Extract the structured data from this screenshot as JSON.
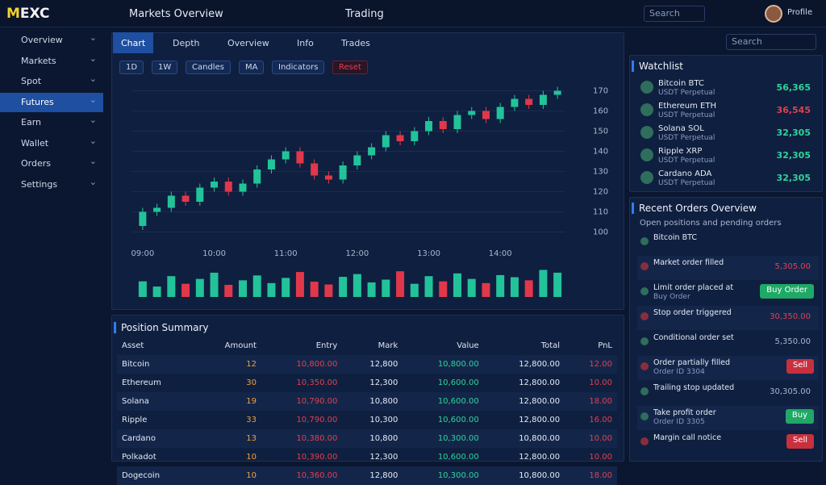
{
  "header": {
    "logo": "MEXC",
    "nav": [
      "Markets Overview",
      "Trading"
    ],
    "search": "Search",
    "user": "Profile"
  },
  "sidebar": {
    "items": [
      "Overview",
      "Markets",
      "Spot",
      "Futures",
      "Earn",
      "Wallet",
      "Orders",
      "Settings"
    ],
    "active": 3
  },
  "tabs": {
    "items": [
      "Chart",
      "Depth",
      "Overview",
      "Info",
      "Trades"
    ],
    "active": 0,
    "search": "Search"
  },
  "filters": [
    "1D",
    "1W",
    "Candles",
    "MA",
    "Indicators",
    "Reset"
  ],
  "chart_data": [
    {
      "type": "candlestick",
      "categories": [
        "09:00",
        null,
        null,
        null,
        null,
        "10:00",
        null,
        null,
        null,
        null,
        "11:00",
        null,
        null,
        null,
        null,
        "12:00",
        null,
        null,
        null,
        null,
        "13:00",
        null,
        null,
        null,
        null,
        "14:00",
        null,
        null,
        null,
        null
      ],
      "open": [
        103,
        110,
        112,
        118,
        115,
        122,
        125,
        120,
        124,
        131,
        136,
        140,
        134,
        128,
        126,
        133,
        138,
        142,
        148,
        145,
        150,
        155,
        151,
        158,
        160,
        156,
        162,
        166,
        163,
        168
      ],
      "close": [
        110,
        112,
        118,
        115,
        122,
        125,
        120,
        124,
        131,
        136,
        140,
        134,
        128,
        126,
        133,
        138,
        142,
        148,
        145,
        150,
        155,
        151,
        158,
        160,
        156,
        162,
        166,
        163,
        168,
        170
      ],
      "high": [
        112,
        114,
        120,
        120,
        124,
        127,
        127,
        126,
        133,
        138,
        142,
        142,
        136,
        130,
        135,
        140,
        144,
        150,
        150,
        152,
        157,
        157,
        160,
        162,
        162,
        164,
        168,
        168,
        170,
        172
      ],
      "low": [
        101,
        108,
        110,
        113,
        113,
        120,
        118,
        118,
        122,
        129,
        134,
        132,
        126,
        124,
        124,
        131,
        136,
        140,
        143,
        143,
        148,
        149,
        149,
        156,
        154,
        154,
        160,
        161,
        161,
        166
      ],
      "up_color": "#22c39a",
      "down_color": "#e0384a",
      "ylim": [
        95,
        175
      ],
      "yticks": [
        100,
        110,
        120,
        130,
        140,
        150,
        160,
        170
      ],
      "grid": true
    },
    {
      "type": "bar",
      "values": [
        45,
        30,
        60,
        38,
        52,
        70,
        35,
        48,
        62,
        40,
        55,
        72,
        44,
        36,
        58,
        66,
        42,
        50,
        74,
        38,
        60,
        45,
        68,
        52,
        40,
        63,
        57,
        48,
        78,
        70
      ],
      "ylim": [
        0,
        100
      ]
    }
  ],
  "table": {
    "title": "Position Summary",
    "columns": [
      "Asset",
      "Amount",
      "Entry",
      "Mark",
      "Value",
      "Total",
      "PnL"
    ],
    "rows": [
      [
        "Bitcoin",
        "12",
        "10,800.00",
        "12,800",
        "10,800.00",
        "12,800.00",
        "12.00"
      ],
      [
        "Ethereum",
        "30",
        "10,350.00",
        "12,300",
        "10,600.00",
        "12,800.00",
        "10.00"
      ],
      [
        "Solana",
        "19",
        "10,790.00",
        "10,800",
        "10,600.00",
        "12,800.00",
        "18.00"
      ],
      [
        "Ripple",
        "33",
        "10,790.00",
        "10,300",
        "10,600.00",
        "12,800.00",
        "16.00"
      ],
      [
        "Cardano",
        "13",
        "10,380.00",
        "10,800",
        "10,300.00",
        "10,800.00",
        "10.00"
      ],
      [
        "Polkadot",
        "10",
        "10,390.00",
        "12,300",
        "10,600.00",
        "12,800.00",
        "10.00"
      ],
      [
        "Dogecoin",
        "10",
        "10,360.00",
        "12,800",
        "10,300.00",
        "10,800.00",
        "18.00"
      ]
    ]
  },
  "watchlist": {
    "title": "Watchlist",
    "items": [
      {
        "name": "Bitcoin BTC",
        "sub": "USDT Perpetual",
        "price": "56,365",
        "change": "up"
      },
      {
        "name": "Ethereum ETH",
        "sub": "USDT Perpetual",
        "price": "36,545",
        "change": "down"
      },
      {
        "name": "Solana SOL",
        "sub": "USDT Perpetual",
        "price": "32,305",
        "change": "up"
      },
      {
        "name": "Ripple XRP",
        "sub": "USDT Perpetual",
        "price": "32,305",
        "change": "up"
      },
      {
        "name": "Cardano ADA",
        "sub": "USDT Perpetual",
        "price": "32,305",
        "change": "up"
      }
    ]
  },
  "orders": {
    "title": "Recent Orders Overview",
    "subtitle": "Open positions and pending orders",
    "items": [
      {
        "name": "Bitcoin BTC",
        "sub": "",
        "action": "",
        "kind": "icon"
      },
      {
        "name": "Market order filled",
        "sub": "",
        "action": "5,305.00",
        "kind": "down"
      },
      {
        "name": "Limit order placed at",
        "sub": "Buy Order",
        "action": "Buy Order",
        "kind": "buy"
      },
      {
        "name": "Stop order triggered",
        "sub": "",
        "action": "30,350.00",
        "kind": "down"
      },
      {
        "name": "Conditional order set",
        "sub": "",
        "action": "5,350.00",
        "kind": "flat"
      },
      {
        "name": "Order partially filled",
        "sub": "Order ID 3304",
        "action": "Sell",
        "kind": "sell"
      },
      {
        "name": "Trailing stop updated",
        "sub": "",
        "action": "30,305.00",
        "kind": "flat"
      },
      {
        "name": "Take profit order",
        "sub": "Order ID 3305",
        "action": "Buy",
        "kind": "buy"
      },
      {
        "name": "Margin call notice",
        "sub": "",
        "action": "Sell",
        "kind": "sell"
      }
    ]
  }
}
